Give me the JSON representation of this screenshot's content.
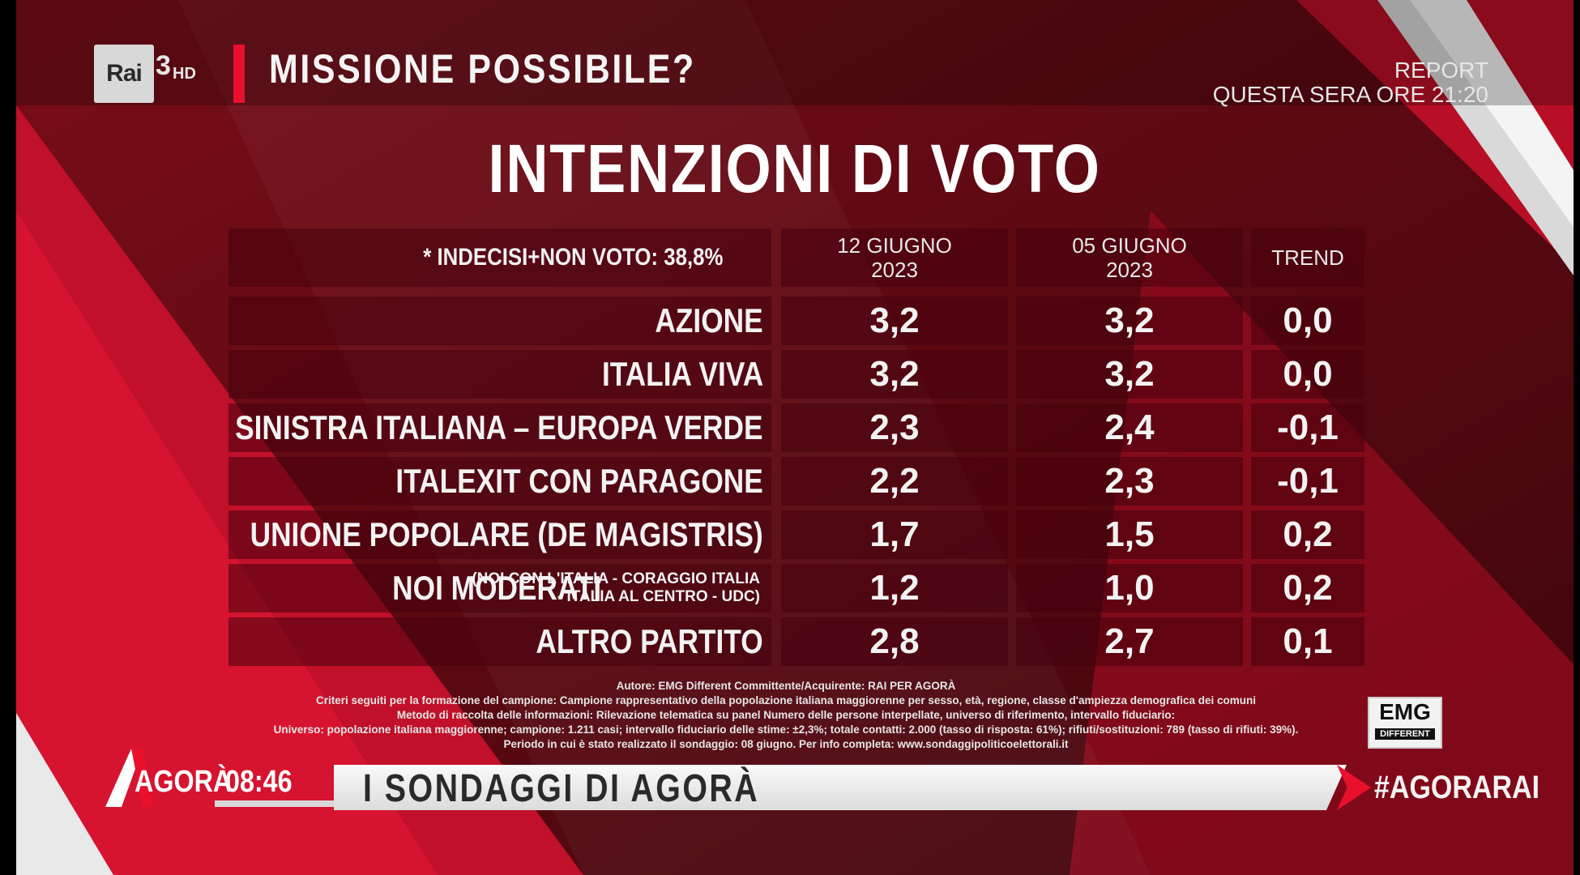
{
  "channel": {
    "logo_text": "Rai",
    "number": "3",
    "hd": "HD"
  },
  "show_title": "MISSIONE POSSIBILE?",
  "promo": {
    "line1": "REPORT",
    "line2": "QUESTA SERA ORE 21:20"
  },
  "main_title": "INTENZIONI DI VOTO",
  "table": {
    "note": "* INDECISI+NON VOTO: 38,8%",
    "col1": {
      "line1": "12 GIUGNO",
      "line2": "2023"
    },
    "col2": {
      "line1": "05 GIUGNO",
      "line2": "2023"
    },
    "col3": "TREND",
    "rows": [
      {
        "party": "AZIONE",
        "v1": "3,2",
        "v2": "3,2",
        "trend": "0,0"
      },
      {
        "party": "ITALIA VIVA",
        "v1": "3,2",
        "v2": "3,2",
        "trend": "0,0"
      },
      {
        "party": "SINISTRA ITALIANA – EUROPA VERDE",
        "v1": "2,3",
        "v2": "2,4",
        "trend": "-0,1"
      },
      {
        "party": "ITALEXIT CON PARAGONE",
        "v1": "2,2",
        "v2": "2,3",
        "trend": "-0,1"
      },
      {
        "party": "UNIONE POPOLARE (DE MAGISTRIS)",
        "v1": "1,7",
        "v2": "1,5",
        "trend": "0,2"
      },
      {
        "party": "NOI MODERATI",
        "sub1": "(NOI CON L'ITALIA - CORAGGIO ITALIA",
        "sub2": "- ITALIA AL CENTRO - UDC)",
        "v1": "1,2",
        "v2": "1,0",
        "trend": "0,2"
      },
      {
        "party": "ALTRO PARTITO",
        "v1": "2,8",
        "v2": "2,7",
        "trend": "0,1"
      }
    ]
  },
  "credits": {
    "l1": "Autore: EMG Different Committente/Acquirente: RAI PER AGORÀ",
    "l2": "Criteri seguiti per la formazione del campione: Campione rappresentativo della popolazione italiana maggiorenne per sesso, età, regione, classe d'ampiezza demografica dei comuni",
    "l3": "Metodo di raccolta delle informazioni: Rilevazione telematica su panel Numero delle persone interpellate, universo di riferimento, intervallo fiduciario:",
    "l4": "Universo: popolazione italiana maggiorenne; campione: 1.211 casi; intervallo fiduciario delle stime: ±2,3%; totale contatti: 2.000 (tasso di risposta: 61%); rifiuti/sostituzioni: 789 (tasso di rifiuti: 39%).",
    "l5": "Periodo in cui è stato realizzato il sondaggio: 08 giugno. Per info completa: www.sondaggipoliticoelettorali.it"
  },
  "emg_logo": {
    "main": "EMG",
    "sub": "DIFFERENT"
  },
  "agora": {
    "name": "AGORÀ",
    "time": "08:46"
  },
  "ticker": "I SONDAGGI DI AGORÀ",
  "hashtag": "#AGORARAI",
  "colors": {
    "accent_red": "#e8102a",
    "panel": "#46000c",
    "background": "#5a0a12"
  }
}
